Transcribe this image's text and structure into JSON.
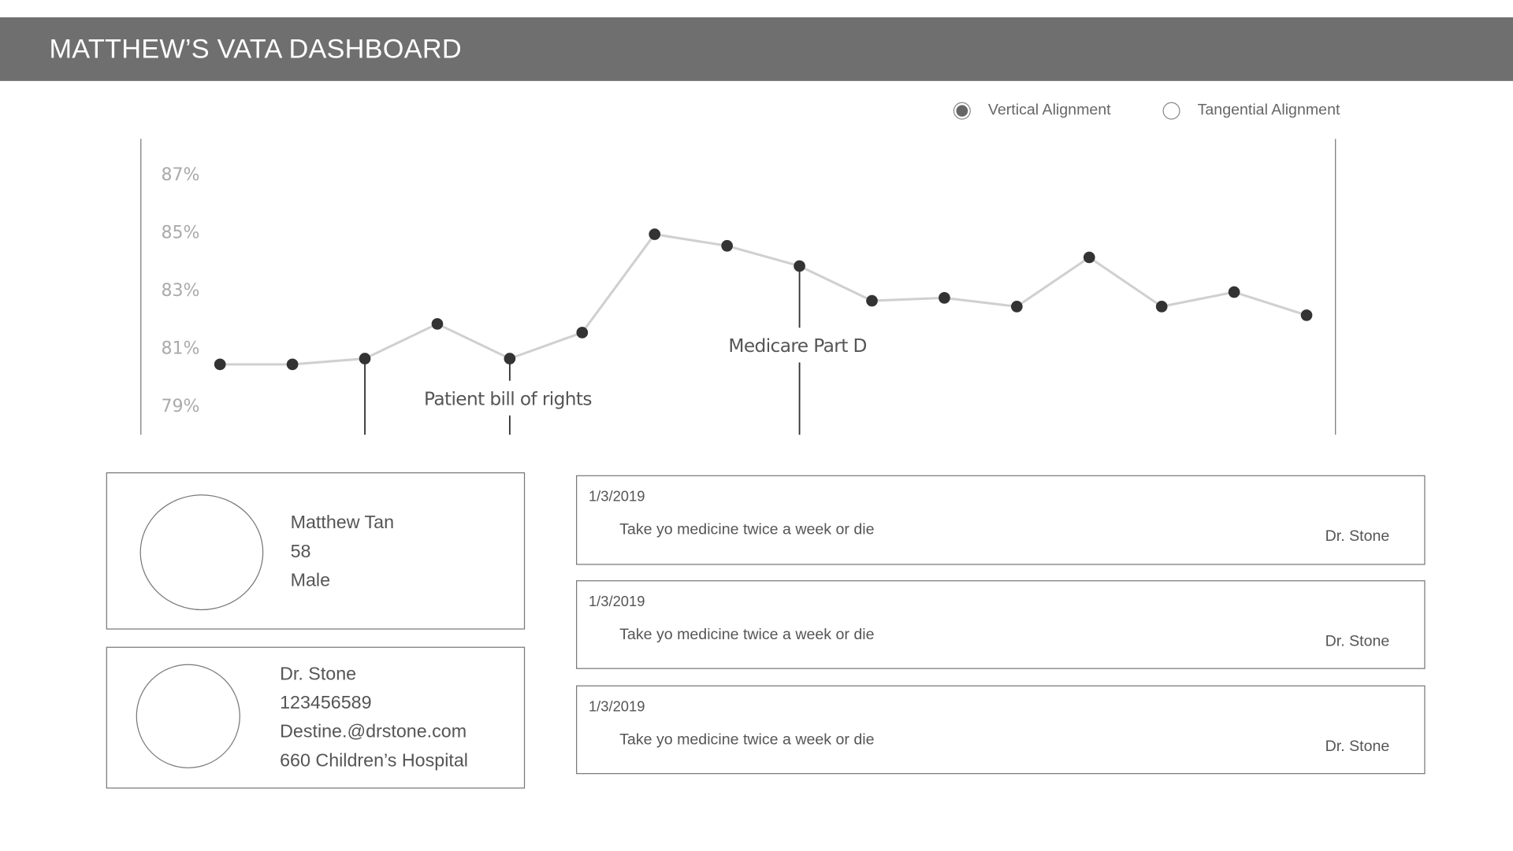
{
  "header": {
    "title": "MATTHEW’S VATA DASHBOARD"
  },
  "options": [
    {
      "label": "Vertical Alignment",
      "selected": true
    },
    {
      "label": "Tangential Alignment",
      "selected": false
    }
  ],
  "chart_data": {
    "type": "line",
    "title": "",
    "yticks": [
      "87%",
      "85%",
      "83%",
      "81%",
      "79%"
    ],
    "ytick_values": [
      87,
      85,
      83,
      81,
      79
    ],
    "ylim": [
      78.5,
      88
    ],
    "values": [
      80.4,
      80.4,
      80.6,
      81.8,
      80.6,
      81.5,
      84.9,
      84.5,
      83.8,
      82.6,
      82.7,
      82.4,
      84.1,
      82.4,
      82.9,
      82.1
    ],
    "annotations": [
      {
        "point_index": 2,
        "label": ""
      },
      {
        "point_index": 4,
        "label": "Patient bill of rights"
      },
      {
        "point_index": 8,
        "label": "Medicare Part D"
      }
    ],
    "line_color": "#d0d0d0",
    "marker_color": "#333333",
    "grid": false
  },
  "patient": {
    "name": "Matthew Tan",
    "age": "58",
    "sex": "Male"
  },
  "doctor": {
    "name": "Dr. Stone",
    "phone": "123456589",
    "email": "Destine.@drstone.com",
    "address": "660 Children’s Hospital"
  },
  "notes": [
    {
      "date": "1/3/2019",
      "text": "Take yo medicine twice a week or die",
      "author": "Dr. Stone"
    },
    {
      "date": "1/3/2019",
      "text": "Take yo medicine twice a week or die",
      "author": "Dr. Stone"
    },
    {
      "date": "1/3/2019",
      "text": "Take yo medicine twice a week or die",
      "author": "Dr. Stone"
    }
  ]
}
